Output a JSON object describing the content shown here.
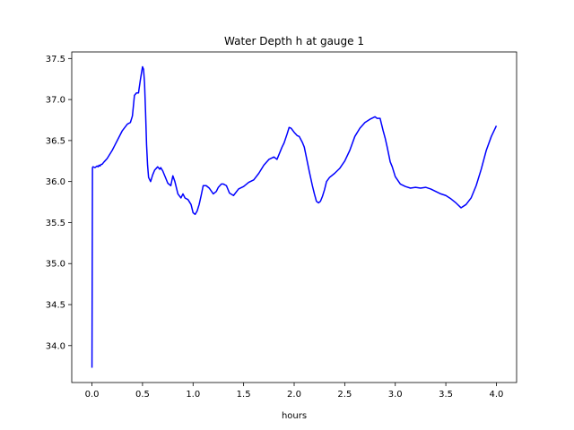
{
  "chart_data": {
    "type": "line",
    "title": "Water Depth h at gauge 1",
    "xlabel": "hours",
    "ylabel": "",
    "xlim": [
      -0.2,
      4.2
    ],
    "ylim": [
      33.55,
      37.58
    ],
    "xticks": [
      0.0,
      0.5,
      1.0,
      1.5,
      2.0,
      2.5,
      3.0,
      3.5,
      4.0
    ],
    "xtick_labels": [
      "0.0",
      "0.5",
      "1.0",
      "1.5",
      "2.0",
      "2.5",
      "3.0",
      "3.5",
      "4.0"
    ],
    "yticks": [
      34.0,
      34.5,
      35.0,
      35.5,
      36.0,
      36.5,
      37.0,
      37.5
    ],
    "ytick_labels": [
      "34.0",
      "34.5",
      "35.0",
      "35.5",
      "36.0",
      "36.5",
      "37.0",
      "37.5"
    ],
    "grid": false,
    "series": [
      {
        "color": "#0000ff",
        "x": [
          0.0,
          0.005,
          0.01,
          0.03,
          0.05,
          0.06,
          0.07,
          0.08,
          0.09,
          0.1,
          0.12,
          0.15,
          0.18,
          0.2,
          0.25,
          0.3,
          0.35,
          0.38,
          0.4,
          0.42,
          0.44,
          0.46,
          0.48,
          0.5,
          0.51,
          0.52,
          0.53,
          0.54,
          0.55,
          0.56,
          0.58,
          0.6,
          0.62,
          0.65,
          0.67,
          0.68,
          0.7,
          0.72,
          0.75,
          0.78,
          0.8,
          0.82,
          0.85,
          0.88,
          0.9,
          0.92,
          0.95,
          0.98,
          1.0,
          1.02,
          1.04,
          1.06,
          1.08,
          1.1,
          1.13,
          1.16,
          1.2,
          1.23,
          1.25,
          1.28,
          1.3,
          1.33,
          1.36,
          1.4,
          1.45,
          1.5,
          1.55,
          1.6,
          1.65,
          1.7,
          1.75,
          1.8,
          1.83,
          1.85,
          1.88,
          1.9,
          1.93,
          1.95,
          1.97,
          2.0,
          2.03,
          2.05,
          2.08,
          2.1,
          2.12,
          2.15,
          2.18,
          2.2,
          2.22,
          2.24,
          2.26,
          2.28,
          2.3,
          2.32,
          2.35,
          2.4,
          2.45,
          2.5,
          2.55,
          2.6,
          2.65,
          2.7,
          2.75,
          2.8,
          2.82,
          2.85,
          2.88,
          2.9,
          2.92,
          2.95,
          2.97,
          3.0,
          3.05,
          3.1,
          3.15,
          3.2,
          3.25,
          3.3,
          3.35,
          3.4,
          3.45,
          3.5,
          3.55,
          3.6,
          3.65,
          3.7,
          3.75,
          3.8,
          3.85,
          3.9,
          3.95,
          4.0
        ],
        "y": [
          33.73,
          36.17,
          36.18,
          36.17,
          36.19,
          36.18,
          36.2,
          36.19,
          36.21,
          36.21,
          36.24,
          36.28,
          36.34,
          36.38,
          36.5,
          36.62,
          36.7,
          36.72,
          36.8,
          37.05,
          37.08,
          37.08,
          37.25,
          37.4,
          37.37,
          37.2,
          36.85,
          36.45,
          36.2,
          36.05,
          36.0,
          36.08,
          36.14,
          36.18,
          36.15,
          36.17,
          36.13,
          36.07,
          35.98,
          35.95,
          36.07,
          36.0,
          35.85,
          35.8,
          35.85,
          35.8,
          35.78,
          35.72,
          35.62,
          35.6,
          35.64,
          35.72,
          35.83,
          35.95,
          35.95,
          35.92,
          35.85,
          35.88,
          35.93,
          35.97,
          35.97,
          35.95,
          35.86,
          35.83,
          35.91,
          35.94,
          35.99,
          36.02,
          36.1,
          36.2,
          36.27,
          36.3,
          36.27,
          36.33,
          36.42,
          36.47,
          36.58,
          36.66,
          36.65,
          36.6,
          36.56,
          36.55,
          36.48,
          36.42,
          36.3,
          36.12,
          35.95,
          35.85,
          35.76,
          35.74,
          35.76,
          35.82,
          35.9,
          36.0,
          36.05,
          36.1,
          36.16,
          36.25,
          36.38,
          36.55,
          36.65,
          36.72,
          36.76,
          36.79,
          36.77,
          36.77,
          36.62,
          36.53,
          36.42,
          36.24,
          36.18,
          36.06,
          35.97,
          35.94,
          35.92,
          35.93,
          35.92,
          35.93,
          35.91,
          35.88,
          35.85,
          35.83,
          35.79,
          35.74,
          35.68,
          35.72,
          35.8,
          35.95,
          36.15,
          36.38,
          36.55,
          36.68
        ]
      }
    ]
  }
}
